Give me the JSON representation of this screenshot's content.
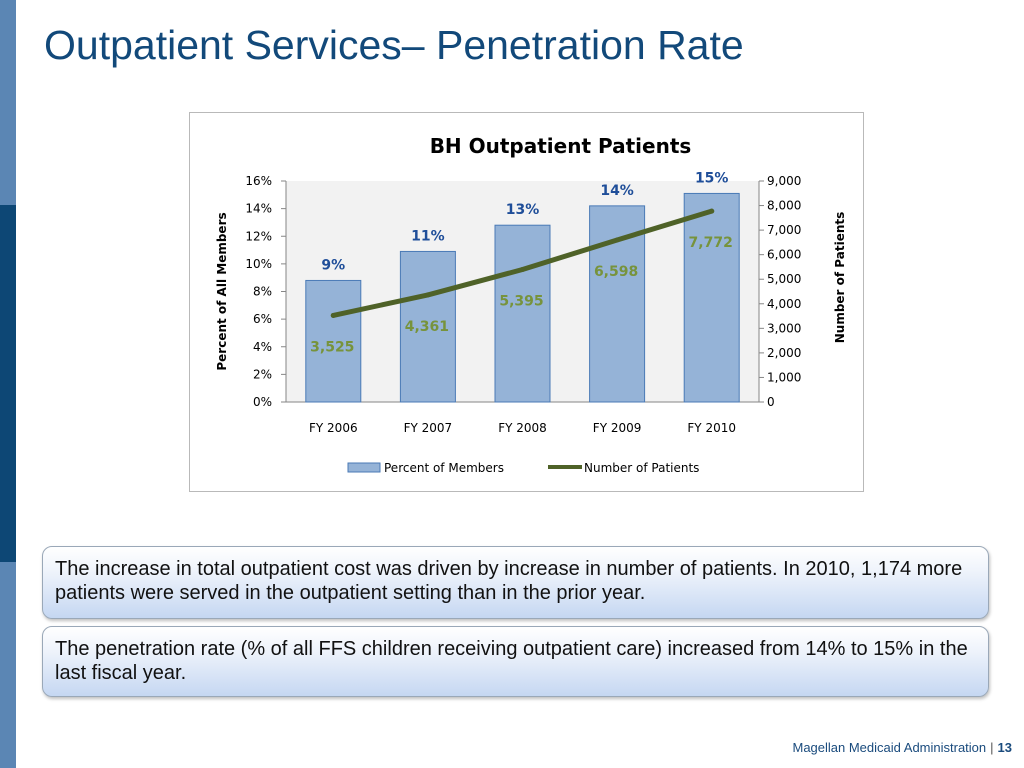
{
  "slide": {
    "title": "Outpatient Services– Penetration Rate",
    "callouts": [
      "The increase in total outpatient cost was driven by increase in number of patients. In 2010, 1,174 more patients were served in the outpatient setting than in the prior year.",
      "The penetration rate (% of all FFS children receiving outpatient care) increased from 14% to 15% in the last fiscal year."
    ],
    "footer": {
      "text": "Magellan Medicaid Administration",
      "separator": "|",
      "page": "13"
    }
  },
  "chart_data": {
    "type": "bar",
    "title": "BH Outpatient Patients",
    "categories": [
      "FY 2006",
      "FY 2007",
      "FY 2008",
      "FY 2009",
      "FY 2010"
    ],
    "series": [
      {
        "name": "Percent of Members",
        "type": "bar",
        "axis": "left",
        "values": [
          8.8,
          10.9,
          12.8,
          14.2,
          15.1
        ],
        "labels": [
          "9%",
          "11%",
          "13%",
          "14%",
          "15%"
        ],
        "color": "#95b3d7",
        "label_color": "#1f4e99"
      },
      {
        "name": "Number of Patients",
        "type": "line",
        "axis": "right",
        "values": [
          3525,
          4361,
          5395,
          6598,
          7772
        ],
        "labels": [
          "3,525",
          "4,361",
          "5,395",
          "6,598",
          "7,772"
        ],
        "color": "#4f6228",
        "label_color": "#77933c"
      }
    ],
    "y_left": {
      "label": "Percent of All Members",
      "min": 0,
      "max": 16,
      "ticks": [
        "0%",
        "2%",
        "4%",
        "6%",
        "8%",
        "10%",
        "12%",
        "14%",
        "16%"
      ]
    },
    "y_right": {
      "label": "Number of Patients",
      "min": 0,
      "max": 9000,
      "ticks": [
        "0",
        "1,000",
        "2,000",
        "3,000",
        "4,000",
        "5,000",
        "6,000",
        "7,000",
        "8,000",
        "9,000"
      ]
    },
    "legend": "bottom",
    "grid": false
  }
}
